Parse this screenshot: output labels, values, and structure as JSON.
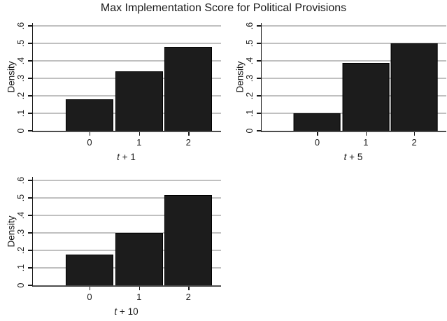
{
  "title": "Max Implementation Score for Political Provisions",
  "colors": {
    "background": "#ffffff",
    "bar_fill": "#1c1c1c",
    "bar_border": "#000000",
    "grid_line": "#c0c0c0",
    "axis_line": "#1a1a1a",
    "baseline": "#4d4d4d",
    "text": "#1a1a1a"
  },
  "chart_data": [
    {
      "type": "bar",
      "panel": "t-plus-1",
      "xlabel": "t + 1",
      "xlabel_italic": "t",
      "xlabel_rest": " + 1",
      "ylabel": "Density",
      "categories": [
        "0",
        "1",
        "2"
      ],
      "values": [
        0.18,
        0.34,
        0.48
      ],
      "ytick_values": [
        0,
        0.1,
        0.2,
        0.3,
        0.4,
        0.5,
        0.6
      ],
      "ytick_labels": [
        "0",
        ".1",
        ".2",
        ".3",
        ".4",
        ".5",
        ".6"
      ],
      "ylim": [
        0,
        0.6
      ],
      "grid": true
    },
    {
      "type": "bar",
      "panel": "t-plus-5",
      "xlabel": "t + 5",
      "xlabel_italic": "t",
      "xlabel_rest": " + 5",
      "ylabel": "Density",
      "categories": [
        "0",
        "1",
        "2"
      ],
      "values": [
        0.1,
        0.39,
        0.5
      ],
      "ytick_values": [
        0,
        0.1,
        0.2,
        0.3,
        0.4,
        0.5,
        0.6
      ],
      "ytick_labels": [
        "0",
        ".1",
        ".2",
        ".3",
        ".4",
        ".5",
        ".6"
      ],
      "ylim": [
        0,
        0.6
      ],
      "grid": true
    },
    {
      "type": "bar",
      "panel": "t-plus-10",
      "xlabel": "t + 10",
      "xlabel_italic": "t",
      "xlabel_rest": " + 10",
      "ylabel": "Density",
      "categories": [
        "0",
        "1",
        "2"
      ],
      "values": [
        0.175,
        0.3,
        0.515
      ],
      "ytick_values": [
        0,
        0.1,
        0.2,
        0.3,
        0.4,
        0.5,
        0.6
      ],
      "ytick_labels": [
        "0",
        ".1",
        ".2",
        ".3",
        ".4",
        ".5",
        ".6"
      ],
      "ylim": [
        0,
        0.6
      ],
      "grid": true
    }
  ]
}
